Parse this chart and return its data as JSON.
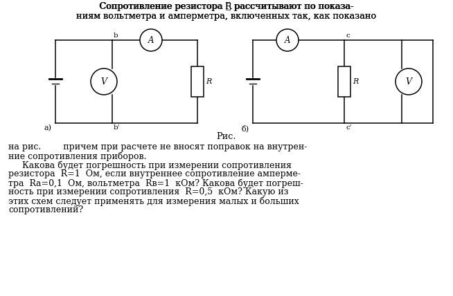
{
  "bg_color": "#ffffff",
  "title_line1": "Сопротивление резистора R рассчитывают по показа-",
  "title_line2": "ниям вольтметра и амперметра, включенных так, как показано",
  "caption": "Рис.",
  "label_a": "а)",
  "label_b": "б)",
  "body_lines": [
    "на рис.        причем при расчете не вносят поправок на внутрен-",
    "ние сопротивления приборов.",
    "    Какова будет погрешность при измерении сопротивления",
    "резистора  R=1  Ом, если внутреннее сопротивление амперме-",
    "тра  Rа=0,1  Ом, вольтметра  Rв=1  кОм? Какова будет погреш-",
    "ность при измерении сопротивления  R=0,5  кОм? Какую из",
    "этих схем следует применять для измерения малых и больших",
    "сопротивлений?"
  ]
}
